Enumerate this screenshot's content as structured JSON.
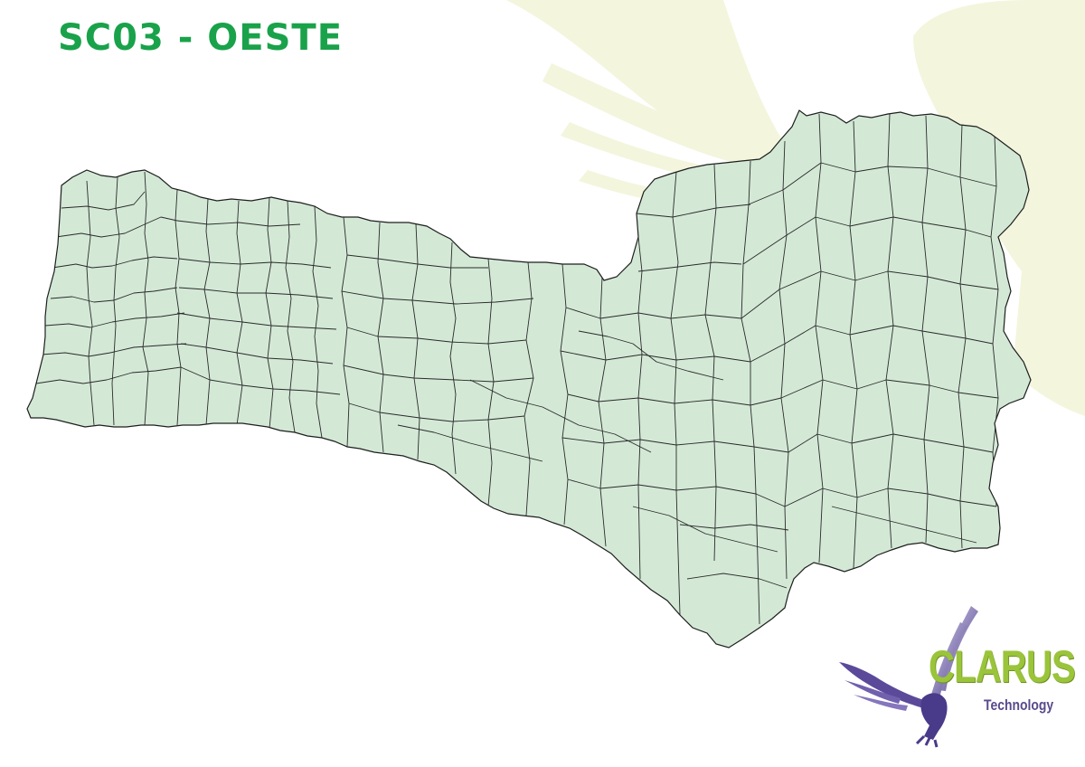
{
  "header": {
    "title": "SC03 - OESTE"
  },
  "map": {
    "fill_color": "#d3e9d6",
    "border_color": "#222222",
    "watermark_color": "#f3f5dd"
  },
  "logo": {
    "wordmark": "CLARUS",
    "tagline": "Technology",
    "wordmark_color": "#9ac43a",
    "eagle_color": "#5b4a9a"
  }
}
